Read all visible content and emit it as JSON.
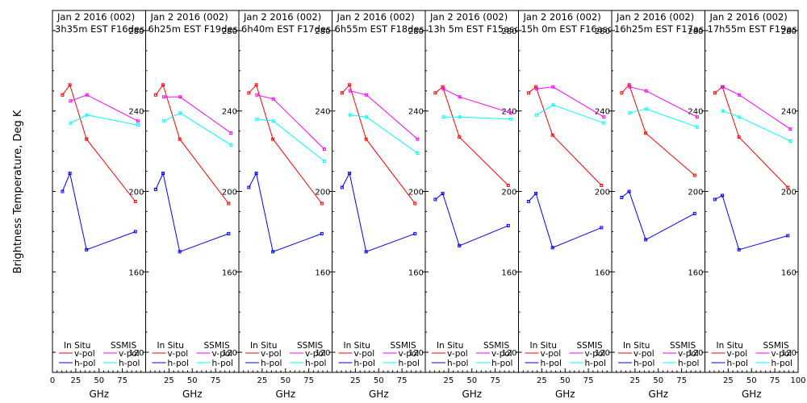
{
  "figure": {
    "ylabel": "Brightness Temperature, Deg K",
    "xlabel": "GHz",
    "legend": {
      "in_situ": "In Situ",
      "ssmis": "SSMIS",
      "vpol": "v-pol",
      "hpol": "h-pol"
    }
  },
  "colors": {
    "insitu_v": "#ff0000",
    "insitu_h": "#0000ff",
    "ssmis_v": "#ff00ff",
    "ssmis_h": "#00ffff",
    "axis": "#000000"
  },
  "chart_data": [
    {
      "type": "line",
      "title": "Jan 2 2016 (002)",
      "subtitle": "3h35m EST F16des",
      "xlim": [
        0,
        100
      ],
      "ylim": [
        110,
        290
      ],
      "xticks": [
        0,
        25,
        50,
        75
      ],
      "yticks": [
        120,
        160,
        200,
        240,
        280
      ],
      "series": [
        {
          "name": "In Situ v-pol",
          "x": [
            10.7,
            18.7,
            36.5,
            89
          ],
          "y": [
            248,
            253,
            226,
            195
          ]
        },
        {
          "name": "In Situ h-pol",
          "x": [
            10.7,
            18.7,
            36.5,
            89
          ],
          "y": [
            200,
            209,
            171,
            180
          ]
        },
        {
          "name": "SSMIS v-pol",
          "x": [
            19.35,
            37,
            91.65
          ],
          "y": [
            245,
            248,
            235
          ]
        },
        {
          "name": "SSMIS h-pol",
          "x": [
            19.35,
            37,
            91.65
          ],
          "y": [
            234,
            238,
            233
          ]
        }
      ]
    },
    {
      "type": "line",
      "title": "Jan 2 2016 (002)",
      "subtitle": "6h25m EST F19des",
      "xlim": [
        0,
        100
      ],
      "ylim": [
        110,
        290
      ],
      "xticks": [
        25,
        50,
        75
      ],
      "yticks": [
        120,
        160,
        200,
        240,
        280
      ],
      "series": [
        {
          "name": "In Situ v-pol",
          "x": [
            10.7,
            18.7,
            36.5,
            89
          ],
          "y": [
            248,
            253,
            226,
            194
          ]
        },
        {
          "name": "In Situ h-pol",
          "x": [
            10.7,
            18.7,
            36.5,
            89
          ],
          "y": [
            201,
            209,
            170,
            179
          ]
        },
        {
          "name": "SSMIS v-pol",
          "x": [
            19.35,
            37,
            91.65
          ],
          "y": [
            247,
            247,
            229
          ]
        },
        {
          "name": "SSMIS h-pol",
          "x": [
            19.35,
            37,
            91.65
          ],
          "y": [
            235,
            239,
            223
          ]
        }
      ]
    },
    {
      "type": "line",
      "title": "Jan 2 2016 (002)",
      "subtitle": "6h40m EST F17des",
      "xlim": [
        0,
        100
      ],
      "ylim": [
        110,
        290
      ],
      "xticks": [
        25,
        50,
        75
      ],
      "yticks": [
        120,
        160,
        200,
        240,
        280
      ],
      "series": [
        {
          "name": "In Situ v-pol",
          "x": [
            10.7,
            18.7,
            36.5,
            89
          ],
          "y": [
            249,
            253,
            226,
            194
          ]
        },
        {
          "name": "In Situ h-pol",
          "x": [
            10.7,
            18.7,
            36.5,
            89
          ],
          "y": [
            202,
            209,
            170,
            179
          ]
        },
        {
          "name": "SSMIS v-pol",
          "x": [
            19.35,
            37,
            91.65
          ],
          "y": [
            248,
            246,
            221
          ]
        },
        {
          "name": "SSMIS h-pol",
          "x": [
            19.35,
            37,
            91.65
          ],
          "y": [
            236,
            235,
            215
          ]
        }
      ]
    },
    {
      "type": "line",
      "title": "Jan 2 2016 (002)",
      "subtitle": "6h55m EST F18des",
      "xlim": [
        0,
        100
      ],
      "ylim": [
        110,
        290
      ],
      "xticks": [
        25,
        50,
        75
      ],
      "yticks": [
        120,
        160,
        200,
        240,
        280
      ],
      "series": [
        {
          "name": "In Situ v-pol",
          "x": [
            10.7,
            18.7,
            36.5,
            89
          ],
          "y": [
            249,
            253,
            226,
            194
          ]
        },
        {
          "name": "In Situ h-pol",
          "x": [
            10.7,
            18.7,
            36.5,
            89
          ],
          "y": [
            202,
            209,
            170,
            179
          ]
        },
        {
          "name": "SSMIS v-pol",
          "x": [
            19.35,
            37,
            91.65
          ],
          "y": [
            250,
            248,
            226
          ]
        },
        {
          "name": "SSMIS h-pol",
          "x": [
            19.35,
            37,
            91.65
          ],
          "y": [
            238,
            237,
            219
          ]
        }
      ]
    },
    {
      "type": "line",
      "title": "Jan 2 2016 (002)",
      "subtitle": "13h 5m EST F15asc",
      "xlim": [
        0,
        100
      ],
      "ylim": [
        110,
        290
      ],
      "xticks": [
        25,
        50,
        75
      ],
      "yticks": [
        120,
        160,
        200,
        240,
        280
      ],
      "series": [
        {
          "name": "In Situ v-pol",
          "x": [
            10.7,
            18.7,
            36.5,
            89
          ],
          "y": [
            249,
            252,
            227,
            203
          ]
        },
        {
          "name": "In Situ h-pol",
          "x": [
            10.7,
            18.7,
            36.5,
            89
          ],
          "y": [
            196,
            199,
            173,
            183
          ]
        },
        {
          "name": "SSMIS v-pol",
          "x": [
            19.35,
            37,
            91.65
          ],
          "y": [
            251,
            247,
            239
          ]
        },
        {
          "name": "SSMIS h-pol",
          "x": [
            19.35,
            37,
            91.65
          ],
          "y": [
            237,
            237,
            236
          ]
        }
      ]
    },
    {
      "type": "line",
      "title": "Jan 2 2016 (002)",
      "subtitle": "15h 0m EST F16asc",
      "xlim": [
        0,
        100
      ],
      "ylim": [
        110,
        290
      ],
      "xticks": [
        25,
        50,
        75
      ],
      "yticks": [
        120,
        160,
        200,
        240,
        280
      ],
      "series": [
        {
          "name": "In Situ v-pol",
          "x": [
            10.7,
            18.7,
            36.5,
            89
          ],
          "y": [
            249,
            252,
            228,
            203
          ]
        },
        {
          "name": "In Situ h-pol",
          "x": [
            10.7,
            18.7,
            36.5,
            89
          ],
          "y": [
            195,
            199,
            172,
            182
          ]
        },
        {
          "name": "SSMIS v-pol",
          "x": [
            19.35,
            37,
            91.65
          ],
          "y": [
            251,
            252,
            237
          ]
        },
        {
          "name": "SSMIS h-pol",
          "x": [
            19.35,
            37,
            91.65
          ],
          "y": [
            238,
            243,
            234
          ]
        }
      ]
    },
    {
      "type": "line",
      "title": "Jan 2 2016 (002)",
      "subtitle": "16h25m EST F17asc",
      "xlim": [
        0,
        100
      ],
      "ylim": [
        110,
        290
      ],
      "xticks": [
        25,
        50,
        75
      ],
      "yticks": [
        120,
        160,
        200,
        240,
        280
      ],
      "series": [
        {
          "name": "In Situ v-pol",
          "x": [
            10.7,
            18.7,
            36.5,
            89
          ],
          "y": [
            249,
            253,
            229,
            208
          ]
        },
        {
          "name": "In Situ h-pol",
          "x": [
            10.7,
            18.7,
            36.5,
            89
          ],
          "y": [
            197,
            200,
            176,
            189
          ]
        },
        {
          "name": "SSMIS v-pol",
          "x": [
            19.35,
            37,
            91.65
          ],
          "y": [
            252,
            250,
            237
          ]
        },
        {
          "name": "SSMIS h-pol",
          "x": [
            19.35,
            37,
            91.65
          ],
          "y": [
            239,
            241,
            232
          ]
        }
      ]
    },
    {
      "type": "line",
      "title": "Jan 2 2016 (002)",
      "subtitle": "17h55m EST F19asc",
      "xlim": [
        0,
        100
      ],
      "ylim": [
        110,
        290
      ],
      "xticks": [
        25,
        50,
        75,
        100
      ],
      "yticks": [
        120,
        160,
        200,
        240,
        280
      ],
      "series": [
        {
          "name": "In Situ v-pol",
          "x": [
            10.7,
            18.7,
            36.5,
            89
          ],
          "y": [
            249,
            252,
            227,
            202
          ]
        },
        {
          "name": "In Situ h-pol",
          "x": [
            10.7,
            18.7,
            36.5,
            89
          ],
          "y": [
            196,
            198,
            171,
            178
          ]
        },
        {
          "name": "SSMIS v-pol",
          "x": [
            19.35,
            37,
            91.65
          ],
          "y": [
            252,
            248,
            231
          ]
        },
        {
          "name": "SSMIS h-pol",
          "x": [
            19.35,
            37,
            91.65
          ],
          "y": [
            240,
            237,
            225
          ]
        }
      ]
    }
  ]
}
